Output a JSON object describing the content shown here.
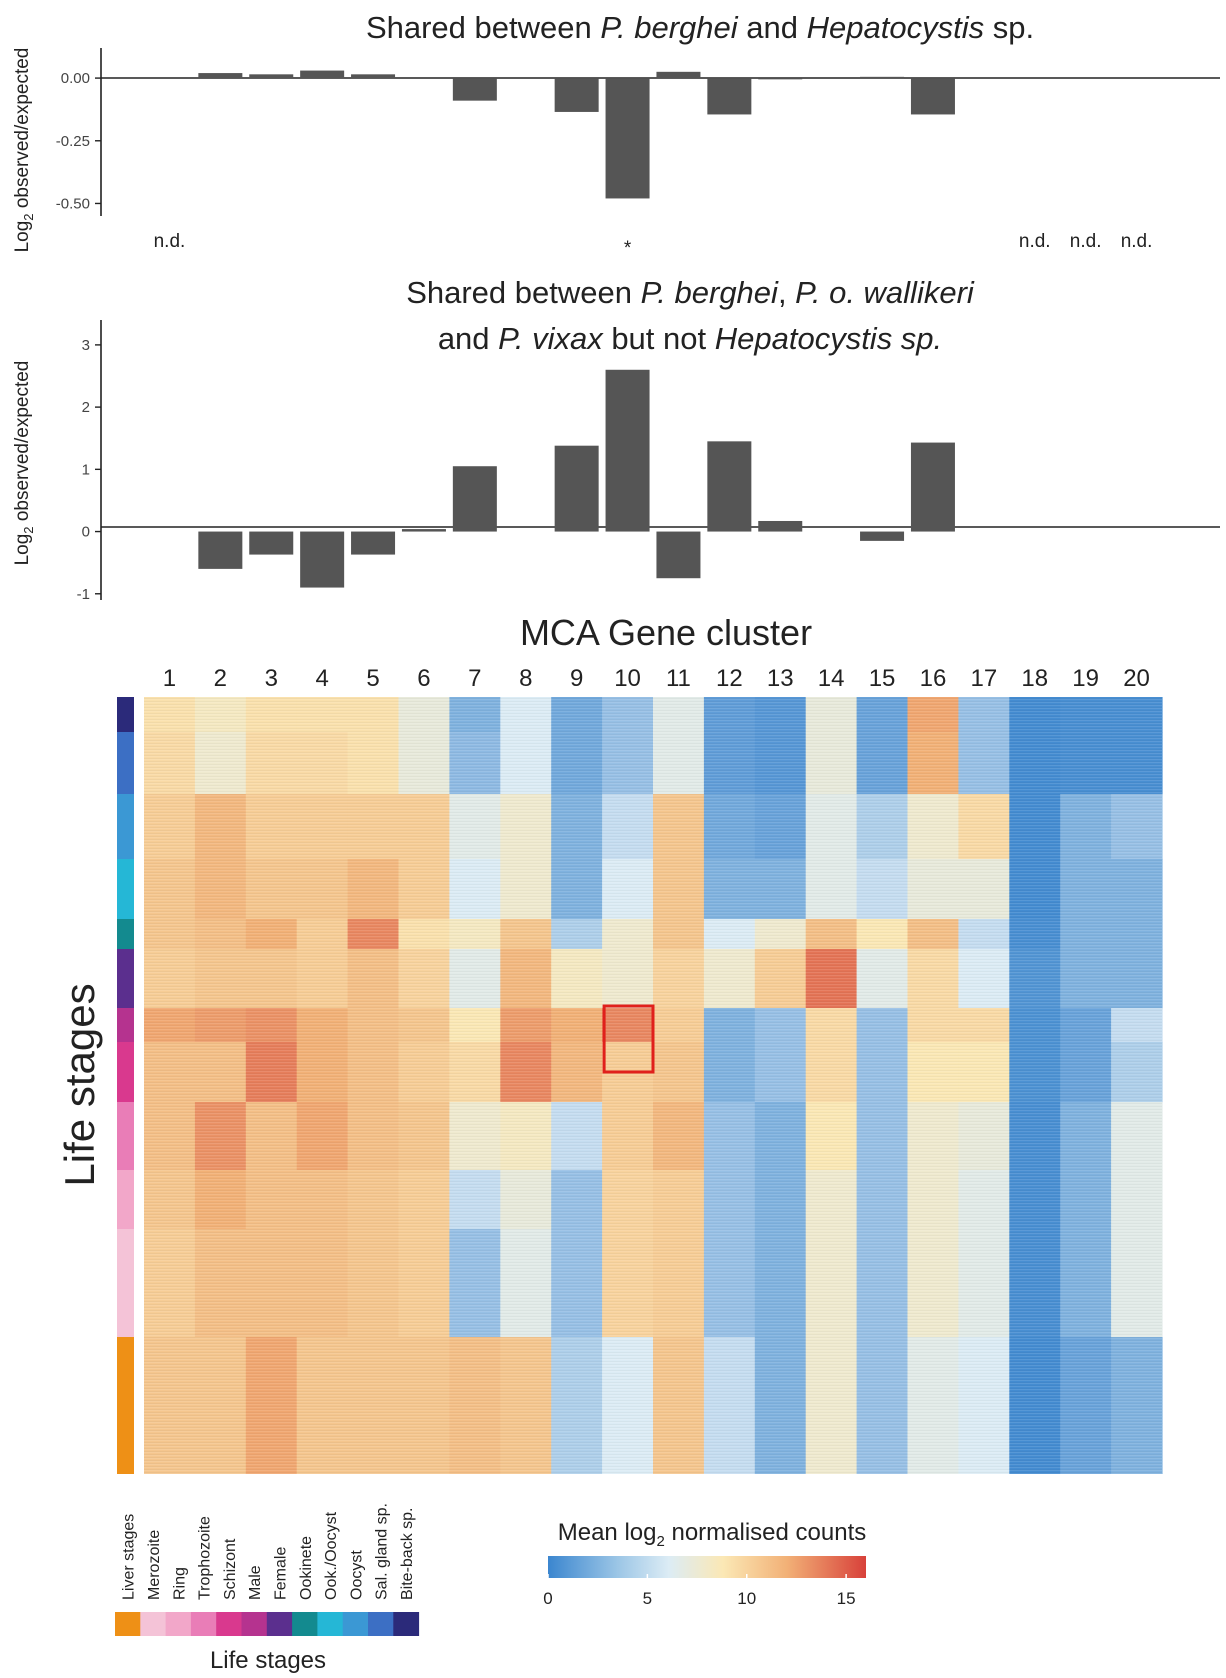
{
  "chart_data": [
    {
      "type": "bar",
      "title_parts": [
        "Shared between ",
        "P. berghei",
        " and ",
        "Hepatocystis",
        " sp."
      ],
      "ylabel": "Log",
      "ylabel_sub": "2",
      "ylabel_rest": " observed/expected",
      "ylim": [
        -0.55,
        0.12
      ],
      "yticks": [
        0,
        -0.25,
        -0.5
      ],
      "ytick_labels": [
        "0.00",
        "-0.25",
        "-0.50"
      ],
      "categories": [
        "1",
        "2",
        "3",
        "4",
        "5",
        "6",
        "7",
        "8",
        "9",
        "10",
        "11",
        "12",
        "13",
        "14",
        "15",
        "16",
        "17",
        "18",
        "19",
        "20"
      ],
      "values": [
        null,
        0.02,
        0.015,
        0.03,
        0.015,
        null,
        -0.09,
        null,
        -0.135,
        -0.48,
        0.025,
        -0.145,
        -0.005,
        null,
        0.005,
        -0.145,
        null,
        null,
        null,
        null
      ],
      "annotations": [
        {
          "cluster": "1",
          "text": "n.d."
        },
        {
          "cluster": "10",
          "text": "*"
        },
        {
          "cluster": "18",
          "text": "n.d."
        },
        {
          "cluster": "19",
          "text": "n.d."
        },
        {
          "cluster": "20",
          "text": "n.d."
        }
      ]
    },
    {
      "type": "bar",
      "title_line1_parts": [
        "Shared between ",
        "P. berghei",
        ", ",
        "P. o. wallikeri"
      ],
      "title_line2_parts": [
        "and ",
        "P. vixax",
        " but not ",
        "Hepatocystis sp."
      ],
      "ylabel": "Log",
      "ylabel_sub": "2",
      "ylabel_rest": " observed/expected",
      "ylim": [
        -1.1,
        3.4
      ],
      "yticks": [
        3,
        2,
        1,
        0,
        -1
      ],
      "ytick_labels": [
        "3",
        "2",
        "1",
        "0",
        "-1"
      ],
      "categories": [
        "1",
        "2",
        "3",
        "4",
        "5",
        "6",
        "7",
        "8",
        "9",
        "10",
        "11",
        "12",
        "13",
        "14",
        "15",
        "16",
        "17",
        "18",
        "19",
        "20"
      ],
      "values": [
        null,
        -0.6,
        -0.37,
        -0.9,
        -0.37,
        0.04,
        1.05,
        null,
        1.38,
        2.6,
        -0.75,
        1.45,
        0.17,
        null,
        -0.15,
        1.43,
        null,
        null,
        null,
        null
      ]
    },
    {
      "type": "heatmap",
      "title": "MCA Gene cluster",
      "column_labels": [
        "1",
        "2",
        "3",
        "4",
        "5",
        "6",
        "7",
        "8",
        "9",
        "10",
        "11",
        "12",
        "13",
        "14",
        "15",
        "16",
        "17",
        "18",
        "19",
        "20"
      ],
      "row_axis_label": "Life stages",
      "highlight": {
        "column": "10",
        "row_group": "Male"
      },
      "row_groups": [
        {
          "name": "Bite-back sp.",
          "color": "#2b2a7a",
          "values": [
            6.5,
            5.5,
            6.5,
            6.5,
            6.5,
            4.5,
            1.5,
            3.5,
            1.2,
            2.0,
            4.0,
            0.8,
            0.6,
            4.5,
            1.0,
            10.5,
            2.0,
            0.2,
            0.3,
            0.3
          ]
        },
        {
          "name": "Sal. gland sp.",
          "color": "#3c6fc4",
          "values": [
            7.0,
            5.0,
            7.0,
            7.0,
            6.5,
            4.5,
            1.8,
            3.5,
            1.2,
            2.0,
            4.0,
            0.8,
            0.6,
            4.5,
            1.0,
            10.0,
            2.0,
            0.2,
            0.3,
            0.3
          ]
        },
        {
          "name": "Oocyst",
          "color": "#3b98d4",
          "values": [
            8.0,
            9.5,
            8.0,
            8.0,
            8.0,
            8.0,
            4.0,
            5.0,
            1.5,
            3.0,
            8.5,
            1.2,
            1.0,
            4.0,
            2.5,
            5.0,
            7.0,
            0.2,
            1.5,
            2.0
          ]
        },
        {
          "name": "Ook./Oocyst",
          "color": "#25b7d6",
          "values": [
            8.5,
            9.5,
            8.5,
            8.5,
            9.5,
            8.0,
            3.5,
            5.0,
            1.5,
            3.5,
            8.5,
            1.5,
            1.5,
            4.0,
            3.0,
            4.5,
            4.5,
            0.2,
            1.5,
            1.5
          ]
        },
        {
          "name": "Ookinete",
          "color": "#138a8f",
          "values": [
            8.5,
            9.0,
            10.0,
            8.0,
            12.0,
            6.5,
            5.5,
            8.5,
            2.5,
            5.0,
            8.5,
            3.5,
            5.0,
            9.0,
            6.0,
            9.0,
            3.0,
            0.3,
            1.5,
            1.5
          ]
        },
        {
          "name": "Female",
          "color": "#5b2f8e",
          "values": [
            8.0,
            8.5,
            8.5,
            8.0,
            9.0,
            7.5,
            4.0,
            9.5,
            5.5,
            5.0,
            7.5,
            5.0,
            8.0,
            13.0,
            4.0,
            7.0,
            3.5,
            0.5,
            1.5,
            1.5
          ]
        },
        {
          "name": "Male",
          "color": "#b5338f",
          "values": [
            10.5,
            11.0,
            11.5,
            10.0,
            9.0,
            8.5,
            6.0,
            11.0,
            10.0,
            12.0,
            8.0,
            1.5,
            2.0,
            7.0,
            2.0,
            7.0,
            7.0,
            0.4,
            1.0,
            3.0
          ]
        },
        {
          "name": "Schizont",
          "color": "#d9398e",
          "values": [
            9.0,
            9.0,
            12.5,
            10.0,
            9.0,
            8.0,
            7.0,
            12.0,
            9.5,
            8.0,
            8.5,
            1.5,
            2.0,
            7.0,
            2.0,
            6.0,
            6.0,
            0.4,
            1.0,
            2.5
          ]
        },
        {
          "name": "Trophozoite",
          "color": "#e97db7",
          "values": [
            9.0,
            11.5,
            9.0,
            10.5,
            9.0,
            8.5,
            5.0,
            5.5,
            3.0,
            8.0,
            9.5,
            2.0,
            1.5,
            6.0,
            2.0,
            5.0,
            4.5,
            0.3,
            1.5,
            4.0
          ]
        },
        {
          "name": "Ring",
          "color": "#f2a7c9",
          "values": [
            8.5,
            10.0,
            9.0,
            9.0,
            8.5,
            8.0,
            3.0,
            4.5,
            2.0,
            7.5,
            8.0,
            2.0,
            1.5,
            5.0,
            2.0,
            5.0,
            4.0,
            0.3,
            1.5,
            4.0
          ]
        },
        {
          "name": "Merozoite",
          "color": "#f4c3d7",
          "values": [
            8.0,
            9.0,
            9.0,
            9.0,
            8.5,
            8.0,
            2.0,
            4.0,
            2.0,
            7.5,
            8.0,
            2.0,
            1.5,
            5.0,
            2.0,
            5.0,
            4.0,
            0.3,
            1.5,
            4.0
          ]
        },
        {
          "name": "Liver stages",
          "color": "#ee9016",
          "values": [
            8.5,
            8.5,
            10.5,
            8.5,
            8.5,
            8.5,
            9.0,
            8.5,
            2.5,
            3.5,
            8.5,
            3.0,
            1.5,
            5.0,
            2.0,
            4.0,
            3.5,
            0.2,
            1.0,
            1.5
          ]
        }
      ],
      "colorbar": {
        "title_prefix": "Mean log",
        "title_sub": "2",
        "title_suffix": " normalised counts",
        "range": [
          0,
          16
        ],
        "ticks": [
          0,
          5,
          10,
          15
        ],
        "tick_labels": [
          "0",
          "5",
          "10",
          "15"
        ]
      },
      "stage_legend": {
        "title": "Life stages",
        "labels": [
          "Liver stages",
          "Merozoite",
          "Ring",
          "Trophozoite",
          "Schizont",
          "Male",
          "Female",
          "Ookinete",
          "Ook./Oocyst",
          "Oocyst",
          "Sal. gland sp.",
          "Bite-back sp."
        ],
        "colors": [
          "#ee9016",
          "#f4c3d7",
          "#f2a7c9",
          "#e97db7",
          "#d9398e",
          "#b5338f",
          "#5b2f8e",
          "#138a8f",
          "#25b7d6",
          "#3b98d4",
          "#3c6fc4",
          "#2b2a7a"
        ]
      }
    }
  ],
  "colors": {
    "bar": "#555555",
    "axis": "#222222",
    "highlight": "#e0201b",
    "scale": [
      "#3b86cf",
      "#dcecf5",
      "#fbe8b5",
      "#f2b177",
      "#d8413a"
    ]
  }
}
